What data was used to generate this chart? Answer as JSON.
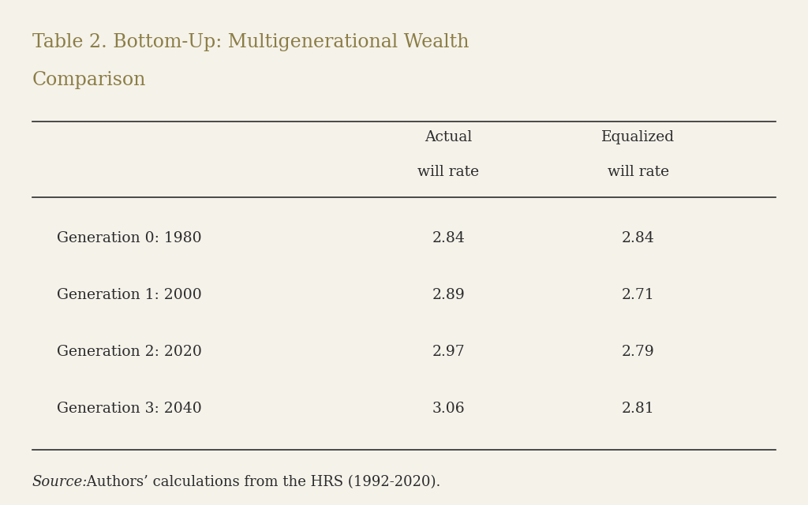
{
  "title_line1": "Table 2. Bottom-Up: Multigenerational Wealth",
  "title_line2": "Comparison",
  "title_color": "#8B7D45",
  "background_color": "#F5F2EA",
  "col_headers_1": [
    "",
    "Actual",
    "Equalized"
  ],
  "col_headers_2": [
    "",
    "will rate",
    "will rate"
  ],
  "rows": [
    [
      "Generation 0: 1980",
      "2.84",
      "2.84"
    ],
    [
      "Generation 1: 2000",
      "2.89",
      "2.71"
    ],
    [
      "Generation 2: 2020",
      "2.97",
      "2.79"
    ],
    [
      "Generation 3: 2040",
      "3.06",
      "2.81"
    ]
  ],
  "source_italic": "Source:",
  "source_normal": " Authors’ calculations from the HRS (1992-2020).",
  "text_color": "#2C2C2C",
  "line_color": "#2C2C2C",
  "title_fontsize": 17,
  "header_fontsize": 13.5,
  "body_fontsize": 13.5,
  "source_fontsize": 13
}
